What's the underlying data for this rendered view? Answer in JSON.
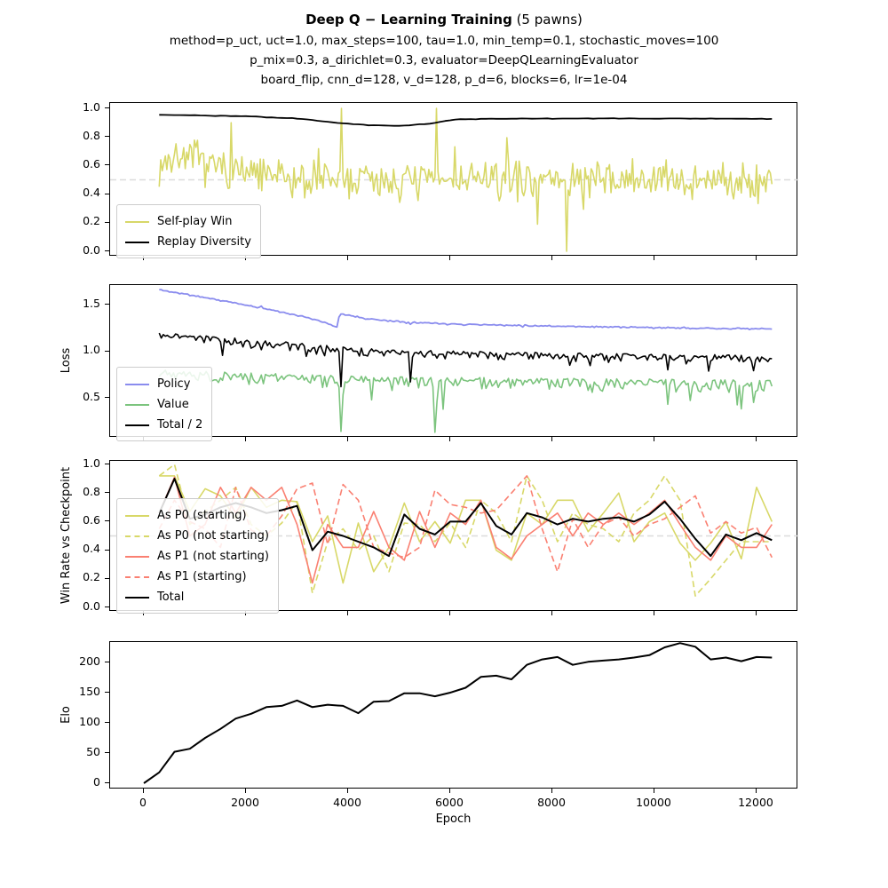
{
  "header": {
    "title_bold": "Deep Q − Learning Training",
    "title_suffix": " (5 pawns)",
    "subtitle_lines": [
      "method=p_uct, uct=1.0, max_steps=100, tau=1.0, min_temp=0.1, stochastic_moves=100",
      "p_mix=0.3, a_dirichlet=0.3, evaluator=DeepQLearningEvaluator",
      "board_flip, cnn_d=128, v_d=128, p_d=6, blocks=6, lr=1e-04"
    ]
  },
  "colors": {
    "selfplay_yellow": "#d8d868",
    "policy_blue": "#8a8cee",
    "value_green": "#7cc47e",
    "salmon": "#fa8072",
    "black": "#000000",
    "ref_gray": "#dcdcdc"
  },
  "chart_data": {
    "type": "line",
    "xlabel": "Epoch",
    "xlim": [
      -661,
      12817
    ],
    "xticks": [
      0,
      2000,
      4000,
      6000,
      8000,
      10000,
      12000
    ],
    "panels": [
      {
        "name": "selfplay",
        "ylabel": "",
        "ylim": [
          -0.037,
          1.037
        ],
        "yticks": [
          0.0,
          0.2,
          0.4,
          0.6,
          0.8,
          1.0
        ],
        "ref_line": 0.5,
        "legend": {
          "items": [
            {
              "label": "Self-play Win",
              "color": "#d8d868",
              "dash": false
            },
            {
              "label": "Replay Diversity",
              "color": "#000000",
              "dash": false
            }
          ]
        },
        "series": [
          {
            "name": "Self-play Win",
            "color": "#d8d868",
            "lw": 1.6,
            "mode": "noisy",
            "x0": 300,
            "x1": 12300,
            "step": 30,
            "seed": 7,
            "noise": 0.16,
            "clamp": [
              0.0,
              1.0
            ],
            "trend": [
              [
                300,
                0.6
              ],
              [
                700,
                0.67
              ],
              [
                1100,
                0.63
              ],
              [
                1700,
                0.57
              ],
              [
                2500,
                0.52
              ],
              [
                3200,
                0.5
              ],
              [
                12300,
                0.5
              ]
            ],
            "spikes": [
              [
                3880,
                1.0
              ],
              [
                5720,
                1.0
              ],
              [
                8280,
                0.0
              ]
            ]
          },
          {
            "name": "Replay Diversity",
            "color": "#000000",
            "lw": 1.8,
            "mode": "noisy",
            "x0": 300,
            "x1": 12300,
            "step": 100,
            "seed": 3,
            "noise": 0.002,
            "trend": [
              [
                300,
                0.955
              ],
              [
                2000,
                0.944
              ],
              [
                3000,
                0.928
              ],
              [
                3800,
                0.898
              ],
              [
                4400,
                0.882
              ],
              [
                5000,
                0.877
              ],
              [
                5600,
                0.893
              ],
              [
                6100,
                0.923
              ],
              [
                7000,
                0.927
              ],
              [
                9000,
                0.929
              ],
              [
                12300,
                0.927
              ]
            ]
          }
        ]
      },
      {
        "name": "loss",
        "ylabel": "Loss",
        "ylim": [
          0.071,
          1.71
        ],
        "yticks": [
          0.5,
          1.0,
          1.5
        ],
        "ref_line": null,
        "legend": {
          "items": [
            {
              "label": "Policy",
              "color": "#8a8cee",
              "dash": false
            },
            {
              "label": "Value",
              "color": "#7cc47e",
              "dash": false
            },
            {
              "label": "Total / 2",
              "color": "#000000",
              "dash": false
            }
          ]
        },
        "series": [
          {
            "name": "Policy",
            "color": "#8a8cee",
            "lw": 1.8,
            "mode": "noisy",
            "x0": 300,
            "x1": 12300,
            "step": 40,
            "seed": 11,
            "noise": 0.009,
            "trend": [
              [
                300,
                1.66
              ],
              [
                1200,
                1.575
              ],
              [
                2400,
                1.455
              ],
              [
                3400,
                1.335
              ],
              [
                3790,
                1.258
              ],
              [
                3830,
                1.4
              ],
              [
                4400,
                1.345
              ],
              [
                5200,
                1.31
              ],
              [
                6200,
                1.29
              ],
              [
                8000,
                1.27
              ],
              [
                10000,
                1.252
              ],
              [
                12300,
                1.238
              ]
            ]
          },
          {
            "name": "Value",
            "color": "#7cc47e",
            "lw": 1.6,
            "mode": "noisy",
            "noise_mode": "down",
            "x0": 300,
            "x1": 12300,
            "step": 40,
            "seed": 5,
            "noise": 0.1,
            "trend": [
              [
                300,
                0.8
              ],
              [
                1500,
                0.78
              ],
              [
                3000,
                0.75
              ],
              [
                4500,
                0.73
              ],
              [
                6000,
                0.72
              ],
              [
                8000,
                0.71
              ],
              [
                10000,
                0.7
              ],
              [
                12300,
                0.69
              ]
            ],
            "spikes": [
              [
                3860,
                0.14
              ],
              [
                5700,
                0.13
              ],
              [
                10250,
                0.43
              ],
              [
                11950,
                0.45
              ]
            ]
          },
          {
            "name": "Total / 2",
            "color": "#000000",
            "lw": 1.6,
            "mode": "noisy",
            "noise_mode": "down",
            "x0": 300,
            "x1": 12300,
            "step": 40,
            "seed": 9,
            "noise": 0.07,
            "trend": [
              [
                300,
                1.2
              ],
              [
                1500,
                1.155
              ],
              [
                3000,
                1.09
              ],
              [
                3900,
                1.045
              ],
              [
                5000,
                1.01
              ],
              [
                6500,
                1.0
              ],
              [
                8000,
                0.985
              ],
              [
                10000,
                0.97
              ],
              [
                12300,
                0.955
              ]
            ],
            "spikes": [
              [
                3860,
                0.62
              ],
              [
                5200,
                0.67
              ],
              [
                10250,
                0.8
              ],
              [
                11950,
                0.79
              ]
            ]
          }
        ]
      },
      {
        "name": "winrate",
        "ylabel": "Win Rate vs Checkpoint",
        "ylim": [
          -0.031,
          1.025
        ],
        "yticks": [
          0.0,
          0.2,
          0.4,
          0.6,
          0.8,
          1.0
        ],
        "ref_line": 0.5,
        "legend": {
          "items": [
            {
              "label": "As P0 (starting)",
              "color": "#d8d868",
              "dash": false
            },
            {
              "label": "As P0 (not starting)",
              "color": "#d8d868",
              "dash": true
            },
            {
              "label": "As P1 (not starting)",
              "color": "#fa8072",
              "dash": false
            },
            {
              "label": "As P1 (starting)",
              "color": "#fa8072",
              "dash": true
            },
            {
              "label": "Total",
              "color": "#000000",
              "dash": false
            }
          ]
        },
        "series": [
          {
            "name": "As P0 (starting)",
            "color": "#d8d868",
            "lw": 1.6,
            "mode": "values",
            "x0": 300,
            "step": 300,
            "values": [
              0.92,
              0.92,
              0.67,
              0.83,
              0.78,
              0.62,
              0.84,
              0.7,
              0.75,
              0.74,
              0.46,
              0.64,
              0.17,
              0.59,
              0.25,
              0.42,
              0.73,
              0.46,
              0.6,
              0.45,
              0.75,
              0.75,
              0.4,
              0.33,
              0.66,
              0.58,
              0.75,
              0.75,
              0.53,
              0.66,
              0.8,
              0.46,
              0.6,
              0.66,
              0.45,
              0.33,
              0.45,
              0.6,
              0.34,
              0.84,
              0.6
            ]
          },
          {
            "name": "As P0 (not starting)",
            "color": "#d8d868",
            "lw": 1.6,
            "dash": true,
            "mode": "values",
            "x0": 300,
            "step": 300,
            "values": [
              0.92,
              1.0,
              0.58,
              0.67,
              0.75,
              0.84,
              0.58,
              0.5,
              0.59,
              0.74,
              0.1,
              0.46,
              0.55,
              0.4,
              0.5,
              0.25,
              0.59,
              0.58,
              0.46,
              0.59,
              0.42,
              0.75,
              0.66,
              0.46,
              0.92,
              0.75,
              0.46,
              0.66,
              0.58,
              0.55,
              0.46,
              0.66,
              0.75,
              0.92,
              0.75,
              0.08,
              0.2,
              0.33,
              0.46,
              0.46,
              0.46
            ]
          },
          {
            "name": "As P1 (not starting)",
            "color": "#fa8072",
            "lw": 1.6,
            "mode": "values",
            "x0": 300,
            "step": 300,
            "values": [
              0.66,
              0.91,
              0.5,
              0.58,
              0.84,
              0.66,
              0.84,
              0.75,
              0.84,
              0.58,
              0.17,
              0.58,
              0.42,
              0.42,
              0.67,
              0.42,
              0.33,
              0.67,
              0.42,
              0.66,
              0.58,
              0.75,
              0.42,
              0.34,
              0.5,
              0.58,
              0.66,
              0.5,
              0.66,
              0.58,
              0.66,
              0.58,
              0.66,
              0.75,
              0.58,
              0.42,
              0.33,
              0.5,
              0.42,
              0.42,
              0.58
            ]
          },
          {
            "name": "As P1 (starting)",
            "color": "#fa8072",
            "lw": 1.6,
            "dash": true,
            "mode": "values",
            "x0": 300,
            "step": 300,
            "values": [
              0.55,
              0.75,
              0.6,
              0.55,
              0.42,
              0.84,
              0.54,
              0.5,
              0.64,
              0.83,
              0.87,
              0.44,
              0.86,
              0.75,
              0.42,
              0.38,
              0.35,
              0.42,
              0.82,
              0.72,
              0.7,
              0.66,
              0.68,
              0.8,
              0.92,
              0.55,
              0.25,
              0.62,
              0.42,
              0.58,
              0.63,
              0.5,
              0.58,
              0.62,
              0.7,
              0.78,
              0.52,
              0.6,
              0.52,
              0.56,
              0.35
            ]
          },
          {
            "name": "Total",
            "color": "#000000",
            "lw": 2.0,
            "mode": "values",
            "x0": 300,
            "step": 300,
            "values": [
              0.66,
              0.9,
              0.62,
              0.65,
              0.7,
              0.73,
              0.7,
              0.66,
              0.68,
              0.71,
              0.4,
              0.53,
              0.5,
              0.46,
              0.42,
              0.36,
              0.65,
              0.55,
              0.51,
              0.6,
              0.6,
              0.73,
              0.57,
              0.51,
              0.66,
              0.63,
              0.58,
              0.62,
              0.6,
              0.62,
              0.63,
              0.6,
              0.65,
              0.74,
              0.62,
              0.48,
              0.36,
              0.51,
              0.47,
              0.52,
              0.47
            ]
          }
        ]
      },
      {
        "name": "elo",
        "ylabel": "Elo",
        "xlabel": "Epoch",
        "xticklabels": true,
        "ylim": [
          -10.3,
          233.8
        ],
        "yticks": [
          0,
          50,
          100,
          150,
          200
        ],
        "ref_line": null,
        "legend": null,
        "series": [
          {
            "name": "Elo",
            "color": "#000000",
            "lw": 2.0,
            "mode": "values",
            "x0": 0,
            "step": 300,
            "values": [
              0,
              18,
              52,
              57,
              75,
              90,
              107,
              115,
              126,
              128,
              137,
              126,
              130,
              128,
              116,
              135,
              136,
              149,
              149,
              144,
              150,
              158,
              176,
              178,
              172,
              196,
              205,
              209,
              196,
              201,
              203,
              205,
              208,
              212,
              225,
              232,
              226,
              205,
              208,
              202,
              209,
              208
            ]
          }
        ]
      }
    ]
  }
}
